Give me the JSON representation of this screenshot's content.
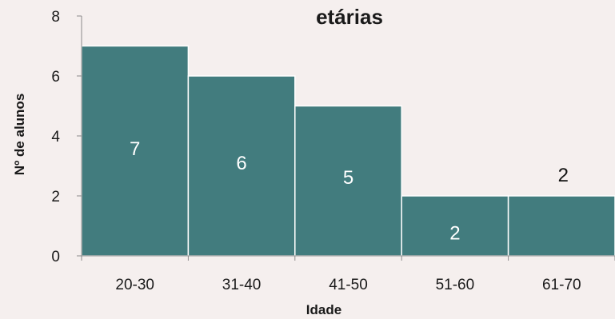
{
  "chart_data": {
    "type": "bar",
    "title": "etárias",
    "xlabel": "Idade",
    "ylabel": "Nº de alunos",
    "categories": [
      "20-30",
      "31-40",
      "41-50",
      "51-60",
      "61-70"
    ],
    "values": [
      7,
      6,
      5,
      2,
      2
    ],
    "data_labels": [
      "7",
      "6",
      "5",
      "2",
      "2"
    ],
    "ylim": [
      0,
      8
    ],
    "yticks": [
      "0",
      "2",
      "4",
      "6",
      "8"
    ],
    "grid": false,
    "legend": "none",
    "bar_color": "#427c7e",
    "bar_border_color": "#ffffff",
    "label_color_inside": "#ffffff",
    "label_color_outside": "#111111"
  }
}
